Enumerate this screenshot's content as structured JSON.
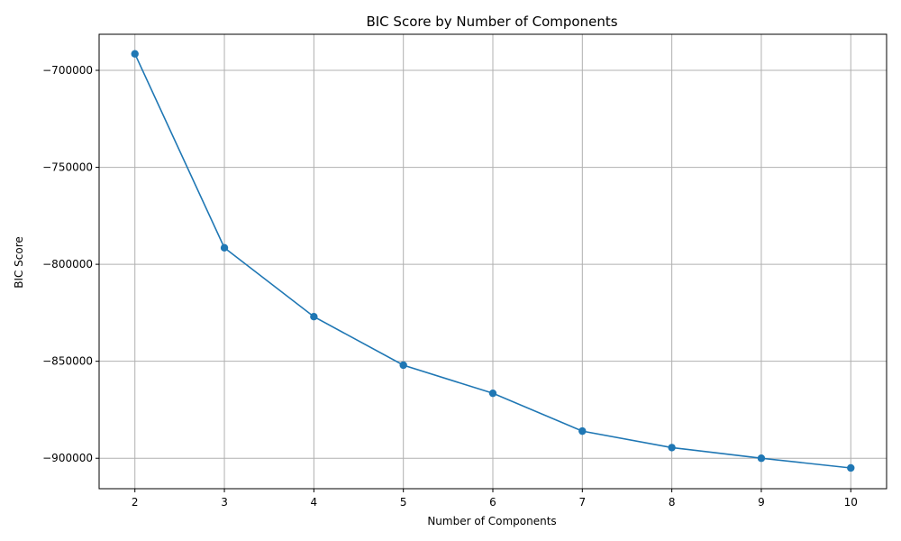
{
  "chart_data": {
    "type": "line",
    "title": "BIC Score by Number of Components",
    "xlabel": "Number of Components",
    "ylabel": "BIC Score",
    "x": [
      2,
      3,
      4,
      5,
      6,
      7,
      8,
      9,
      10
    ],
    "series": [
      {
        "values": [
          -691500,
          -791500,
          -827000,
          -852000,
          -866500,
          -886000,
          -894500,
          -900000,
          -905000
        ],
        "color": "#1f77b4",
        "marker": "circle"
      }
    ],
    "x_ticks": [
      "2",
      "3",
      "4",
      "5",
      "6",
      "7",
      "8",
      "9",
      "10"
    ],
    "y_ticks": [
      {
        "value": -700000,
        "label": "−700000"
      },
      {
        "value": -750000,
        "label": "−750000"
      },
      {
        "value": -800000,
        "label": "−800000"
      },
      {
        "value": -850000,
        "label": "−850000"
      },
      {
        "value": -900000,
        "label": "−900000"
      }
    ],
    "xlim": [
      1.6,
      10.4
    ],
    "ylim": [
      -915700,
      -681400
    ],
    "grid": true,
    "grid_color": "#b0b0b0",
    "axis_color": "#000000"
  }
}
